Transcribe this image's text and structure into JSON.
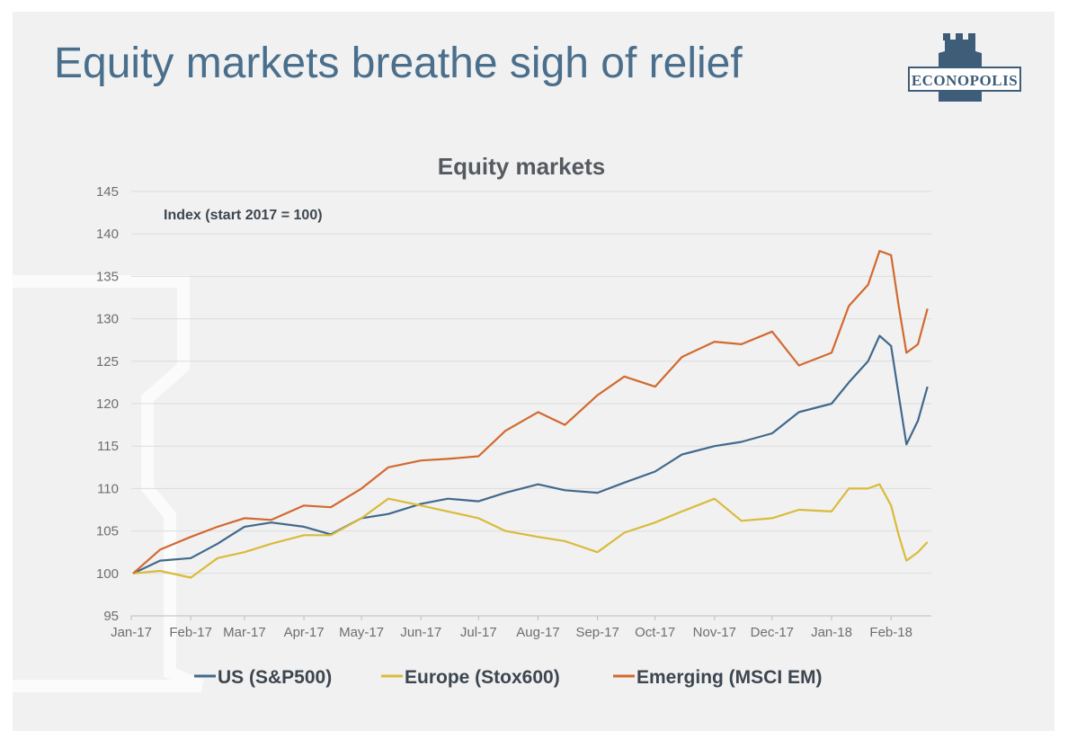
{
  "slide": {
    "title": "Equity markets breathe sigh of relief",
    "logo_text": "ECONOPOLIS"
  },
  "colors": {
    "title": "#4a6f8c",
    "logo": "#3e5d78",
    "us": "#41698c",
    "europe": "#d9bb3b",
    "emerging": "#d2692f"
  },
  "chart_data": {
    "type": "line",
    "title": "Equity markets",
    "annotation": "Index (start 2017 = 100)",
    "xlabel": "",
    "ylabel": "",
    "ylim": [
      95,
      145
    ],
    "yticks": [
      95,
      100,
      105,
      110,
      115,
      120,
      125,
      130,
      135,
      140,
      145
    ],
    "x_ticks": [
      "Jan-17",
      "Feb-17",
      "Mar-17",
      "Apr-17",
      "May-17",
      "Jun-17",
      "Jul-17",
      "Aug-17",
      "Sep-17",
      "Oct-17",
      "Nov-17",
      "Dec-17",
      "Jan-18",
      "Feb-18"
    ],
    "grid": true,
    "legend_position": "bottom",
    "x": [
      "2017-01-02",
      "2017-01-16",
      "2017-02-01",
      "2017-02-15",
      "2017-03-01",
      "2017-03-15",
      "2017-04-01",
      "2017-04-15",
      "2017-05-01",
      "2017-05-15",
      "2017-06-01",
      "2017-06-15",
      "2017-07-01",
      "2017-07-15",
      "2017-08-01",
      "2017-08-15",
      "2017-09-01",
      "2017-09-15",
      "2017-10-01",
      "2017-10-15",
      "2017-11-01",
      "2017-11-15",
      "2017-12-01",
      "2017-12-15",
      "2018-01-01",
      "2018-01-10",
      "2018-01-20",
      "2018-01-26",
      "2018-02-01",
      "2018-02-05",
      "2018-02-09",
      "2018-02-15",
      "2018-02-20"
    ],
    "series": [
      {
        "name": "US (S&P500)",
        "color": "#41698c",
        "values": [
          100,
          101.5,
          101.8,
          103.5,
          105.5,
          106,
          105.5,
          104.6,
          106.5,
          107,
          108.2,
          108.8,
          108.5,
          109.5,
          110.5,
          109.8,
          109.5,
          110.7,
          112,
          114,
          115,
          115.5,
          116.5,
          119,
          120,
          122.5,
          125,
          128,
          126.8,
          121,
          115.2,
          118,
          122
        ]
      },
      {
        "name": "Europe (Stox600)",
        "color": "#d9bb3b",
        "values": [
          100,
          100.3,
          99.5,
          101.8,
          102.5,
          103.5,
          104.5,
          104.5,
          106.5,
          108.8,
          108,
          107.3,
          106.5,
          105,
          104.3,
          103.8,
          102.5,
          104.8,
          106,
          107.3,
          108.8,
          106.2,
          106.5,
          107.5,
          107.3,
          110,
          110,
          110.5,
          108,
          104.5,
          101.5,
          102.5,
          103.7
        ]
      },
      {
        "name": "Emerging (MSCI EM)",
        "color": "#d2692f",
        "values": [
          100,
          102.8,
          104.3,
          105.5,
          106.5,
          106.3,
          108,
          107.8,
          110,
          112.5,
          113.3,
          113.5,
          113.8,
          116.8,
          119,
          117.5,
          121,
          123.2,
          122,
          125.5,
          127.3,
          127,
          128.5,
          124.5,
          126,
          131.5,
          134,
          138,
          137.5,
          131.5,
          126,
          127,
          131.2
        ]
      }
    ]
  }
}
